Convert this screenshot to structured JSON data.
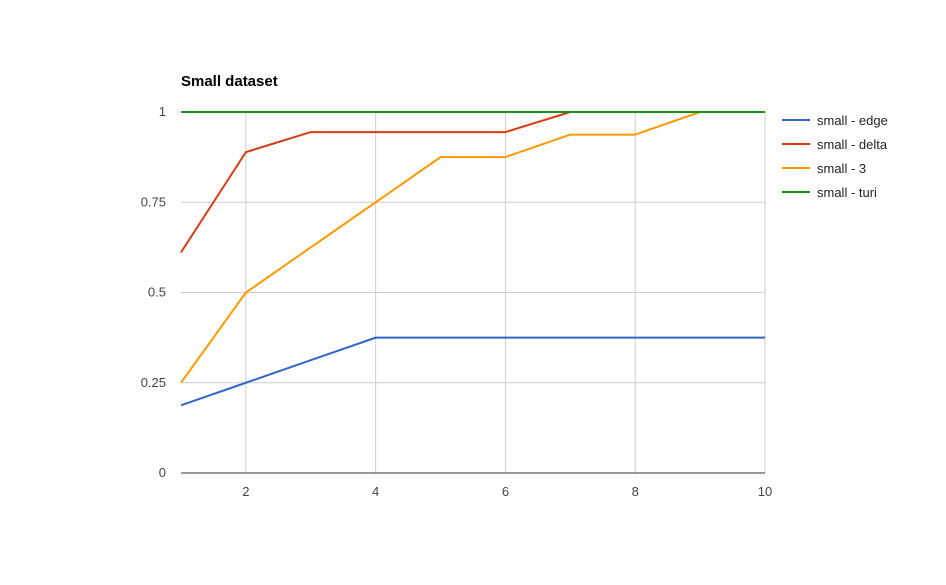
{
  "chart_data": {
    "type": "line",
    "title": "Small dataset",
    "xlabel": "",
    "ylabel": "",
    "xlim": [
      1,
      10
    ],
    "ylim": [
      0,
      1
    ],
    "x": [
      1,
      2,
      3,
      4,
      5,
      6,
      7,
      8,
      9,
      10
    ],
    "x_ticks": [
      "2",
      "4",
      "6",
      "8",
      "10"
    ],
    "y_ticks": [
      "0",
      "0.25",
      "0.5",
      "0.75",
      "1"
    ],
    "grid": true,
    "legend_position": "right",
    "series": [
      {
        "name": "small - edge",
        "color": "#3366cc",
        "values": [
          0.1875,
          0.25,
          0.3125,
          0.375,
          0.375,
          0.375,
          0.375,
          0.375,
          0.375,
          0.375
        ]
      },
      {
        "name": "small - delta",
        "color": "#dc3912",
        "values": [
          0.6111,
          0.8889,
          0.9444,
          0.9444,
          0.9444,
          0.9444,
          1,
          1,
          1,
          1
        ]
      },
      {
        "name": "small - 3",
        "color": "#ff9900",
        "values": [
          0.25,
          0.5,
          0.625,
          0.75,
          0.875,
          0.875,
          0.9375,
          0.9375,
          1,
          1
        ]
      },
      {
        "name": "small - turi",
        "color": "#109618",
        "values": [
          1,
          1,
          1,
          1,
          1,
          1,
          1,
          1,
          1,
          1
        ]
      }
    ]
  }
}
